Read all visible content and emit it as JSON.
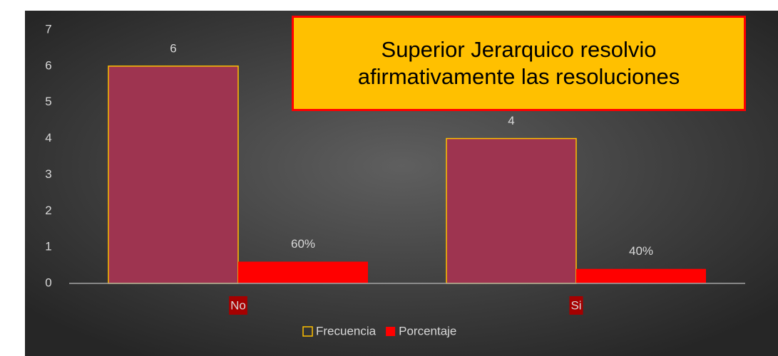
{
  "chart_data": {
    "type": "bar",
    "title": "Superior Jerarquico resolvio afirmativamente las resoluciones",
    "categories": [
      "No",
      "Si"
    ],
    "series": [
      {
        "name": "Frecuencia",
        "color": "#9e3450",
        "edge": "#ffc000",
        "values": [
          6,
          4
        ],
        "value_labels": [
          "6",
          "4"
        ]
      },
      {
        "name": "Porcentaje",
        "color": "#ff0000",
        "values": [
          0.6,
          0.4
        ],
        "value_labels": [
          "60%",
          "40%"
        ]
      }
    ],
    "ylim": [
      0,
      7
    ],
    "yticks": [
      0,
      1,
      2,
      3,
      4,
      5,
      6,
      7
    ],
    "grid": false,
    "legend": "bottom"
  }
}
